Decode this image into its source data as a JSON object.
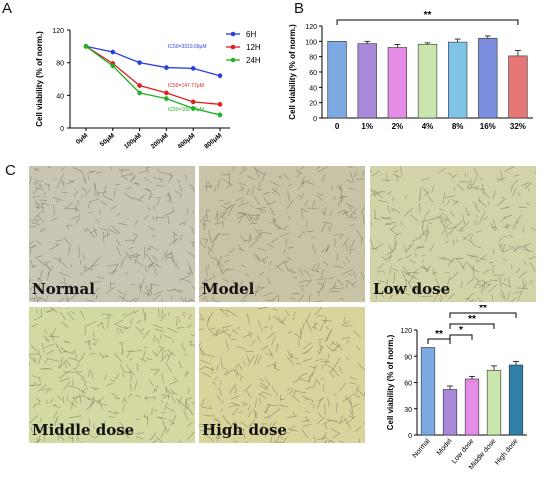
{
  "panels": {
    "a": "A",
    "b": "B",
    "c": "C"
  },
  "chart_data": [
    {
      "type": "line",
      "ylabel": "Cell viability (% of norm.)",
      "xlabel": "",
      "categories": [
        "0μM",
        "50μM",
        "100μM",
        "200μM",
        "400μM",
        "800μM"
      ],
      "ylim": [
        0,
        120
      ],
      "yticks": [
        "0",
        "40",
        "80",
        "120"
      ],
      "legend_position": "top-right",
      "series": [
        {
          "name": "6H",
          "color": "#2a3fe0",
          "values": [
            100,
            93,
            80,
            74,
            73,
            64
          ],
          "annotation": "IC50=3319.09μM"
        },
        {
          "name": "12H",
          "color": "#e02020",
          "values": [
            100,
            79,
            52,
            43,
            32,
            29
          ],
          "annotation": "IC50=147.77μM"
        },
        {
          "name": "24H",
          "color": "#23b023",
          "values": [
            100,
            76,
            43,
            36,
            24,
            16
          ],
          "annotation": "IC50=109.77μM"
        }
      ]
    },
    {
      "type": "bar",
      "ylabel": "Cell viability (% of norm.)",
      "xlabel": "",
      "categories": [
        "0",
        "1%",
        "2%",
        "4%",
        "8%",
        "16%",
        "32%"
      ],
      "values": [
        100,
        97,
        92,
        96,
        99,
        104,
        81
      ],
      "errors": [
        0,
        3,
        4,
        2,
        4,
        3,
        7
      ],
      "colors": [
        "#7da9e3",
        "#a98ad9",
        "#e58de6",
        "#c9e7ad",
        "#7fc4e6",
        "#7b8ee0",
        "#e57777"
      ],
      "ylim": [
        0,
        120
      ],
      "yticks": [
        "0",
        "20",
        "40",
        "60",
        "80",
        "100",
        "120"
      ],
      "significance": [
        {
          "from": "0",
          "to": "32%",
          "label": "**"
        }
      ]
    },
    {
      "type": "bar",
      "ylabel": "Cell viability (% of norm.)",
      "xlabel": "",
      "categories": [
        "Normal",
        "Model",
        "Low dose",
        "Middle dose",
        "High dose"
      ],
      "values": [
        100,
        52,
        64,
        74,
        80
      ],
      "errors": [
        0,
        4,
        3,
        5,
        4
      ],
      "colors": [
        "#7da9e3",
        "#a98ad9",
        "#e58de6",
        "#c9e7ad",
        "#2f7fa6"
      ],
      "ylim": [
        0,
        120
      ],
      "yticks": [
        "0",
        "30",
        "60",
        "90",
        "120"
      ],
      "significance": [
        {
          "from": "Normal",
          "to": "Model",
          "label": "**"
        },
        {
          "from": "Model",
          "to": "Low dose",
          "label": "*"
        },
        {
          "from": "Model",
          "to": "Middle dose",
          "label": "**"
        },
        {
          "from": "Model",
          "to": "High dose",
          "label": "**"
        }
      ]
    }
  ],
  "micrographs": [
    {
      "label": "Normal",
      "tint": "#c9c5b3"
    },
    {
      "label": "Model",
      "tint": "#c8c2a6"
    },
    {
      "label": "Low dose",
      "tint": "#d2d4a8"
    },
    {
      "label": "Middle dose",
      "tint": "#d4d8a3"
    },
    {
      "label": "High dose",
      "tint": "#d8d49b"
    }
  ]
}
